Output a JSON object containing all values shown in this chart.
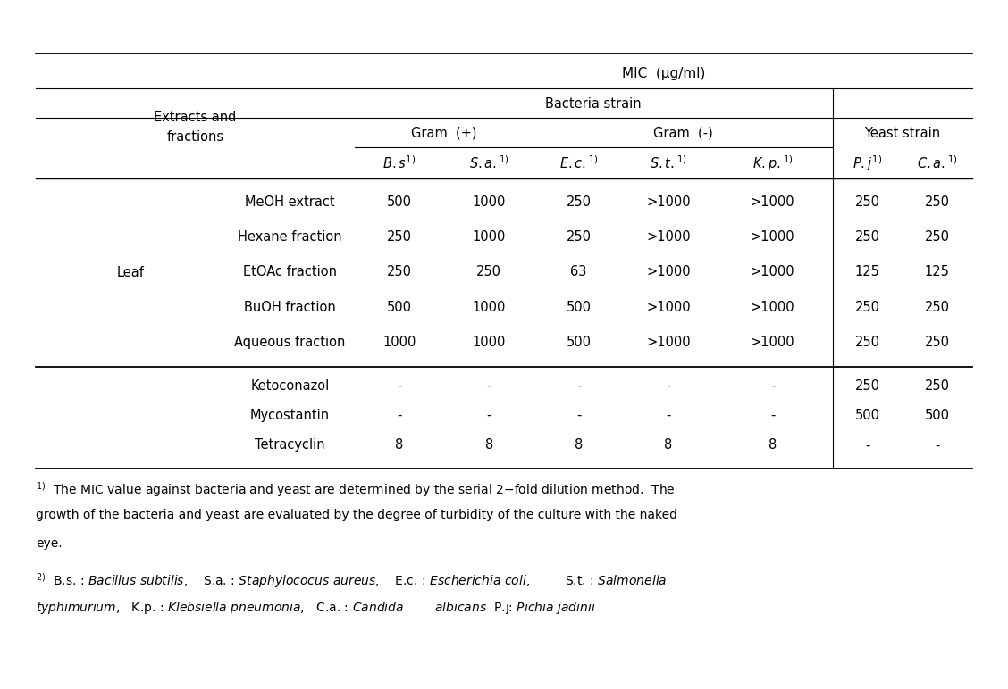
{
  "title": "MIC  (μg/ml)",
  "col_header_bacteria": "Bacteria strain",
  "col_header_gram_pos": "Gram  (+)",
  "col_header_gram_neg": "Gram  (-)",
  "col_header_yeast": "Yeast strain",
  "row_group_label": "Leaf",
  "extract_rows": [
    [
      "MeOH extract",
      "500",
      "1000",
      "250",
      ">1000",
      ">1000",
      "250",
      "250"
    ],
    [
      "Hexane fraction",
      "250",
      "1000",
      "250",
      ">1000",
      ">1000",
      "250",
      "250"
    ],
    [
      "EtOAc fraction",
      "250",
      "250",
      "63",
      ">1000",
      ">1000",
      "125",
      "125"
    ],
    [
      "BuOH fraction",
      "500",
      "1000",
      "500",
      ">1000",
      ">1000",
      "250",
      "250"
    ],
    [
      "Aqueous fraction",
      "1000",
      "1000",
      "500",
      ">1000",
      ">1000",
      "250",
      "250"
    ]
  ],
  "control_rows": [
    [
      "Ketoconazol",
      "-",
      "-",
      "-",
      "-",
      "-",
      "250",
      "250"
    ],
    [
      "Mycostantin",
      "-",
      "-",
      "-",
      "-",
      "-",
      "500",
      "500"
    ],
    [
      "Tetracyclin",
      "8",
      "8",
      "8",
      "8",
      "8",
      "-",
      "-"
    ]
  ],
  "bg_color": "white",
  "text_color": "black",
  "line_color": "black",
  "font_size": 10.5
}
